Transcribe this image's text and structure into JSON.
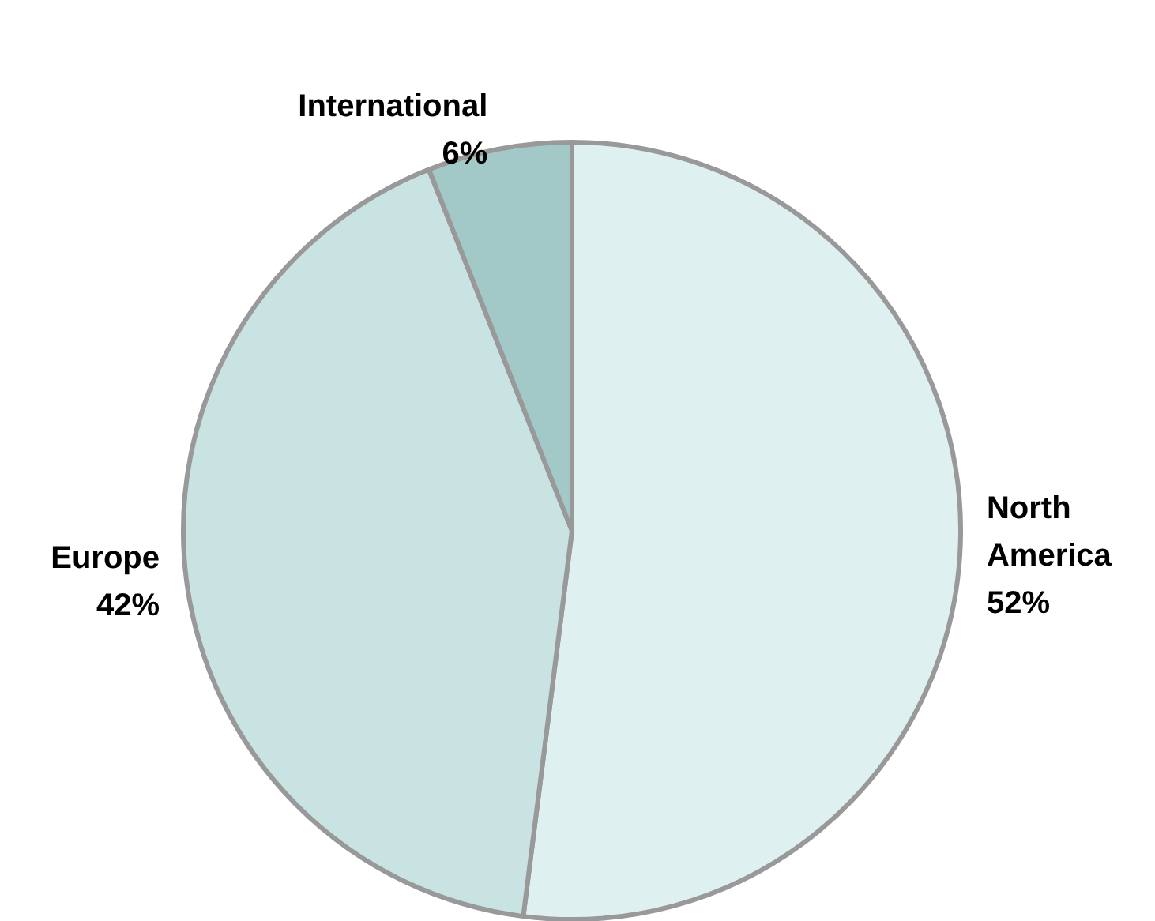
{
  "chart_data": {
    "type": "pie",
    "categories": [
      "North America",
      "Europe",
      "International"
    ],
    "values": [
      52,
      42,
      6
    ],
    "colors": [
      "#dff0f0",
      "#c9e3e3",
      "#a3c8c8"
    ],
    "value_labels": [
      "52%",
      "42%",
      "6%"
    ],
    "legend": false
  }
}
